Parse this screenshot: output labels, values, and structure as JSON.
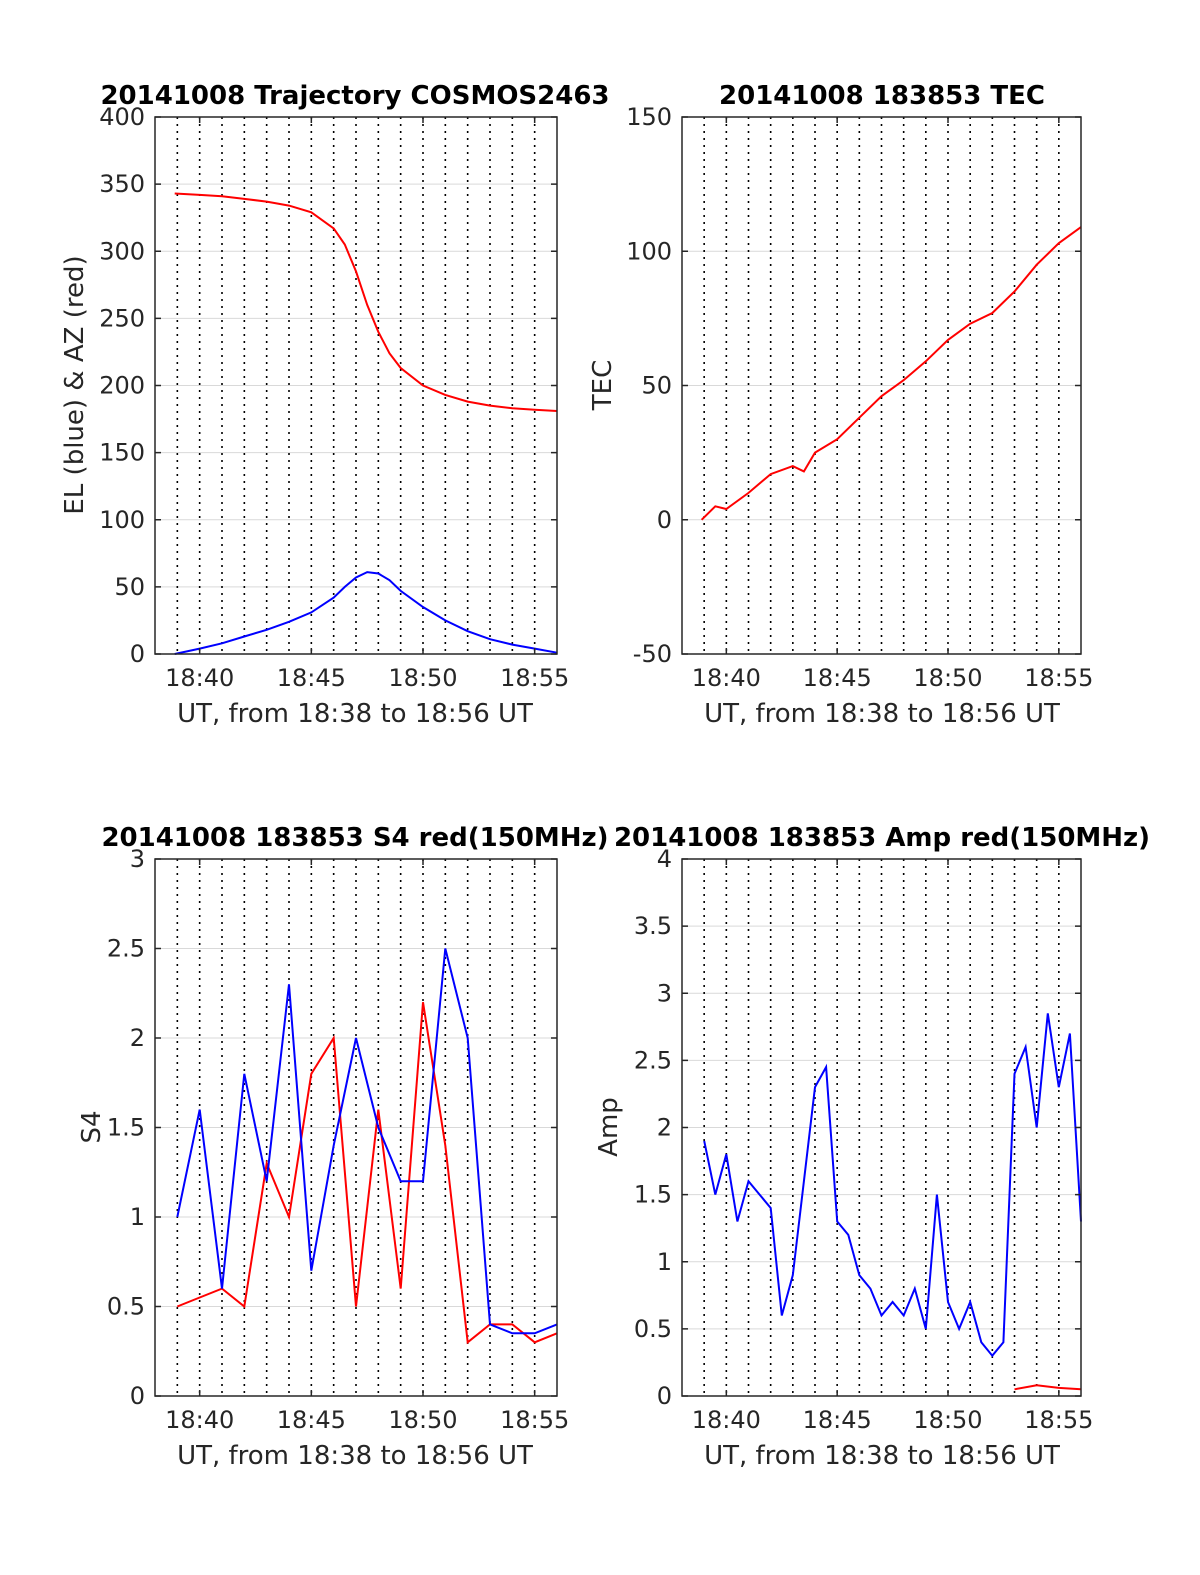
{
  "figure": {
    "background": "#ffffff",
    "colors": {
      "blue": "#0000ff",
      "red": "#ff0000",
      "grid": "#d9d9d9",
      "axis": "#262626"
    }
  },
  "chart_data": [
    {
      "type": "line",
      "title": "20141008 Trajectory COSMOS2463",
      "xlabel": "UT, from 18:38 to 18:56 UT",
      "ylabel": "EL (blue) & AZ (red)",
      "xlim": [
        "18:38",
        "18:56"
      ],
      "ylim": [
        0,
        400
      ],
      "xticks": [
        "18:40",
        "18:45",
        "18:50",
        "18:55"
      ],
      "yticks": [
        "0",
        "50",
        "100",
        "150",
        "200",
        "250",
        "300",
        "350",
        "400"
      ],
      "vertical_dotted_lines_every_minute": true,
      "series": [
        {
          "color": "red",
          "x": [
            "18:38:53",
            "18:40",
            "18:41",
            "18:42",
            "18:43",
            "18:44",
            "18:45",
            "18:46",
            "18:46:30",
            "18:47",
            "18:47:30",
            "18:48",
            "18:48:30",
            "18:49",
            "18:50",
            "18:51",
            "18:52",
            "18:53",
            "18:54",
            "18:55",
            "18:56"
          ],
          "values": [
            343,
            342,
            341,
            339,
            337,
            334,
            329,
            317,
            305,
            285,
            260,
            240,
            224,
            213,
            200,
            193,
            188,
            185,
            183,
            182,
            181
          ]
        },
        {
          "color": "blue",
          "x": [
            "18:38:53",
            "18:40",
            "18:41",
            "18:42",
            "18:43",
            "18:44",
            "18:45",
            "18:46",
            "18:46:30",
            "18:47",
            "18:47:30",
            "18:48",
            "18:48:30",
            "18:49",
            "18:50",
            "18:51",
            "18:52",
            "18:53",
            "18:54",
            "18:55",
            "18:56"
          ],
          "values": [
            0,
            4,
            8,
            13,
            18,
            24,
            31,
            42,
            50,
            57,
            61,
            60,
            55,
            47,
            35,
            25,
            17,
            11,
            7,
            4,
            1
          ]
        }
      ]
    },
    {
      "type": "line",
      "title": "20141008 183853 TEC",
      "xlabel": "UT, from 18:38 to 18:56 UT",
      "ylabel": "TEC",
      "xlim": [
        "18:38",
        "18:56"
      ],
      "ylim": [
        -50,
        150
      ],
      "xticks": [
        "18:40",
        "18:45",
        "18:50",
        "18:55"
      ],
      "yticks": [
        "-50",
        "0",
        "50",
        "100",
        "150"
      ],
      "vertical_dotted_lines_every_minute": true,
      "series": [
        {
          "color": "red",
          "x": [
            "18:38:53",
            "18:39:30",
            "18:40",
            "18:41",
            "18:42",
            "18:43",
            "18:43:30",
            "18:44",
            "18:45",
            "18:46",
            "18:47",
            "18:48",
            "18:49",
            "18:50",
            "18:51",
            "18:52",
            "18:53",
            "18:54",
            "18:55",
            "18:56"
          ],
          "values": [
            0,
            5,
            4,
            10,
            17,
            20,
            18,
            25,
            30,
            38,
            46,
            52,
            59,
            67,
            73,
            77,
            85,
            95,
            103,
            109
          ]
        }
      ]
    },
    {
      "type": "line",
      "title": "20141008 183853 S4 red(150MHz)",
      "xlabel": "UT, from 18:38 to 18:56 UT",
      "ylabel": "S4",
      "xlim": [
        "18:38",
        "18:56"
      ],
      "ylim": [
        0,
        3
      ],
      "xticks": [
        "18:40",
        "18:45",
        "18:50",
        "18:55"
      ],
      "yticks": [
        "0",
        "0.5",
        "1",
        "1.5",
        "2",
        "2.5",
        "3"
      ],
      "vertical_dotted_lines_every_minute": true,
      "series": [
        {
          "color": "red",
          "x": [
            "18:39",
            "18:40",
            "18:41",
            "18:42",
            "18:43",
            "18:44",
            "18:45",
            "18:46",
            "18:47",
            "18:48",
            "18:49",
            "18:50",
            "18:51",
            "18:52",
            "18:53",
            "18:54",
            "18:55",
            "18:56"
          ],
          "values": [
            0.5,
            0.55,
            0.6,
            0.5,
            1.3,
            1.0,
            1.8,
            2.0,
            0.5,
            1.6,
            0.6,
            2.2,
            1.4,
            0.3,
            0.4,
            0.4,
            0.3,
            0.35
          ]
        },
        {
          "color": "blue",
          "x": [
            "18:39",
            "18:40",
            "18:41",
            "18:42",
            "18:43",
            "18:44",
            "18:45",
            "18:46",
            "18:47",
            "18:48",
            "18:49",
            "18:50",
            "18:51",
            "18:52",
            "18:53",
            "18:54",
            "18:55",
            "18:56"
          ],
          "values": [
            1.0,
            1.6,
            0.6,
            1.8,
            1.2,
            2.3,
            0.7,
            1.4,
            2.0,
            1.5,
            1.2,
            1.2,
            2.5,
            2.0,
            0.4,
            0.35,
            0.35,
            0.4
          ]
        }
      ]
    },
    {
      "type": "line",
      "title": "20141008 183853 Amp red(150MHz)",
      "xlabel": "UT, from 18:38 to 18:56 UT",
      "ylabel": "Amp",
      "xlim": [
        "18:38",
        "18:56"
      ],
      "ylim": [
        0,
        4
      ],
      "xticks": [
        "18:40",
        "18:45",
        "18:50",
        "18:55"
      ],
      "yticks": [
        "0",
        "0.5",
        "1",
        "1.5",
        "2",
        "2.5",
        "3",
        "3.5",
        "4"
      ],
      "vertical_dotted_lines_every_minute": true,
      "series": [
        {
          "color": "blue",
          "x": [
            "18:39",
            "18:39:30",
            "18:40",
            "18:40:30",
            "18:41",
            "18:41:30",
            "18:42",
            "18:42:30",
            "18:43",
            "18:43:30",
            "18:44",
            "18:44:30",
            "18:45",
            "18:45:30",
            "18:46",
            "18:46:30",
            "18:47",
            "18:47:30",
            "18:48",
            "18:48:30",
            "18:49",
            "18:49:30",
            "18:50",
            "18:50:30",
            "18:51",
            "18:51:30",
            "18:52",
            "18:52:30",
            "18:53",
            "18:53:30",
            "18:54",
            "18:54:30",
            "18:55",
            "18:55:30",
            "18:56"
          ],
          "values": [
            1.9,
            1.5,
            1.8,
            1.3,
            1.6,
            1.5,
            1.4,
            0.6,
            0.9,
            1.6,
            2.3,
            2.45,
            1.3,
            1.2,
            0.9,
            0.8,
            0.6,
            0.7,
            0.6,
            0.8,
            0.5,
            1.5,
            0.7,
            0.5,
            0.7,
            0.4,
            0.3,
            0.4,
            2.4,
            2.6,
            2.0,
            2.85,
            2.3,
            2.7,
            1.3
          ]
        },
        {
          "color": "red",
          "x": [
            "18:53",
            "18:54",
            "18:55",
            "18:56"
          ],
          "values": [
            0.05,
            0.08,
            0.06,
            0.05
          ]
        }
      ]
    }
  ]
}
